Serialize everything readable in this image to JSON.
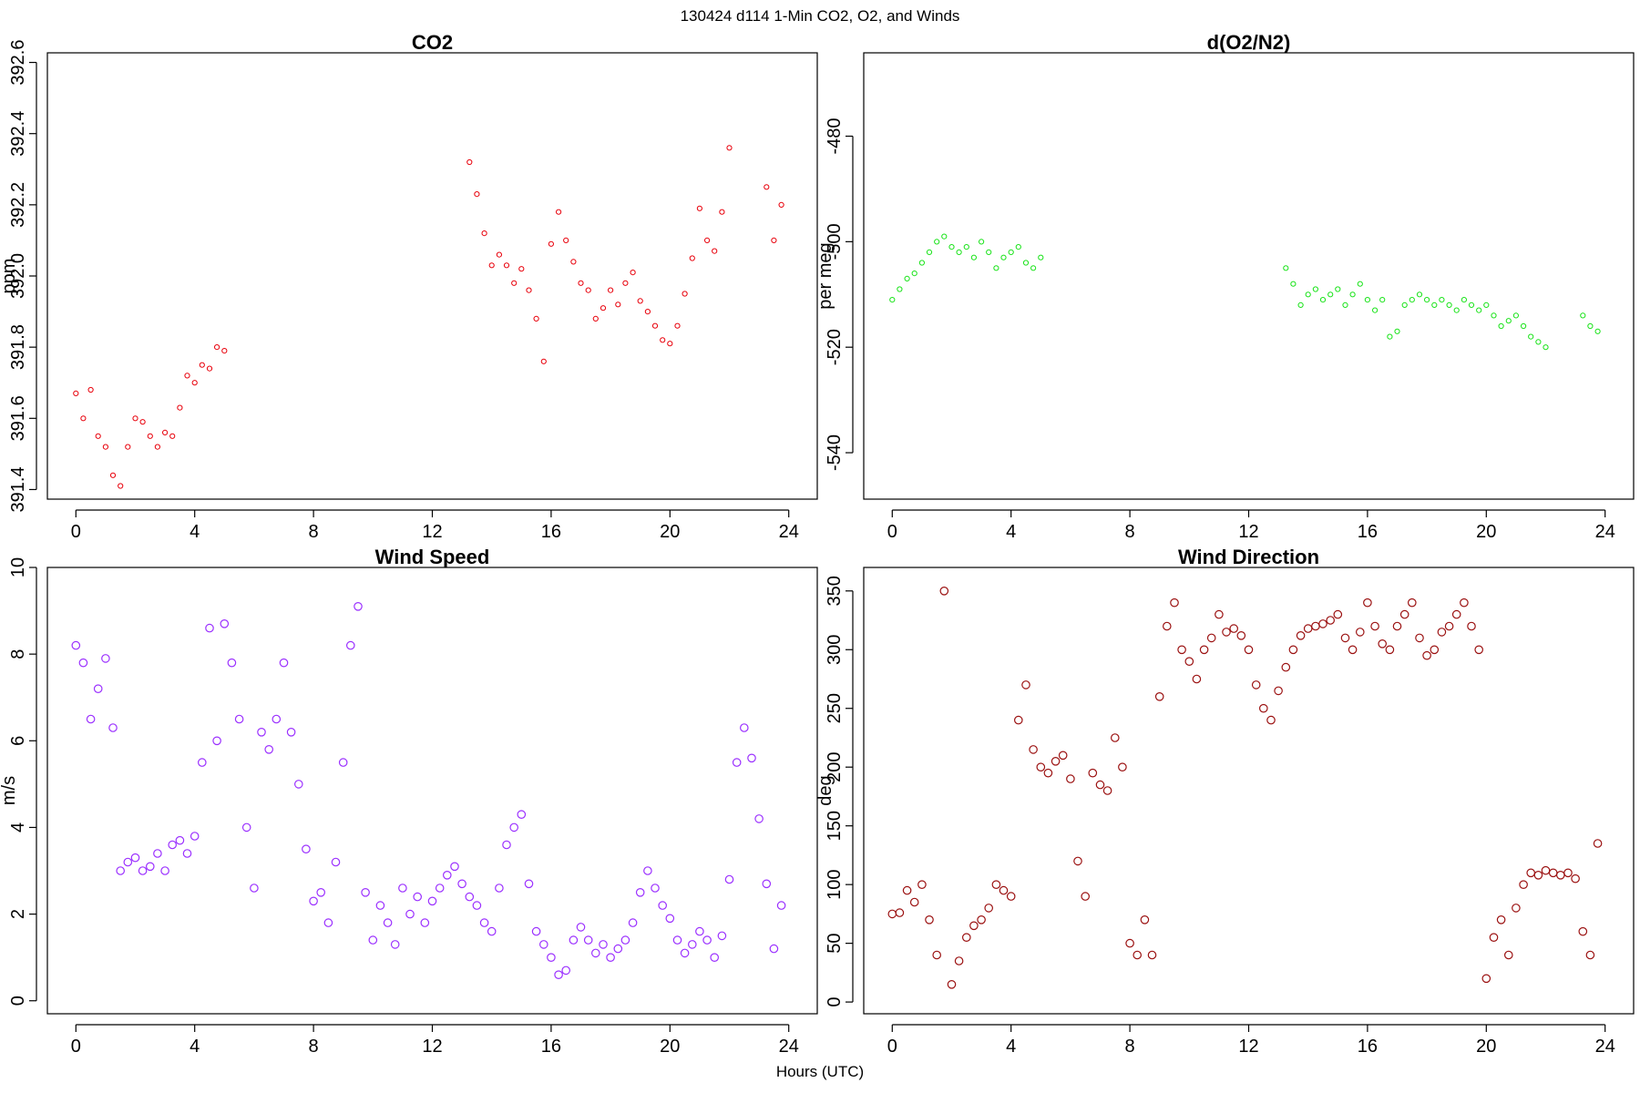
{
  "figure": {
    "suptitle": "130424   d114   1-Min CO2, O2, and Winds",
    "xlabel": "Hours (UTC)"
  },
  "chart_data": [
    {
      "type": "scatter",
      "title": "CO2",
      "xlabel": "",
      "ylabel": "ppm",
      "xlim": [
        -0.96,
        24.96
      ],
      "ylim": [
        391.373,
        392.627
      ],
      "xticks": [
        0,
        4,
        8,
        12,
        16,
        20,
        24
      ],
      "xtick_labels": [
        "0",
        "4",
        "8",
        "12",
        "16",
        "20",
        "24"
      ],
      "yticks": [
        391.4,
        391.6,
        391.8,
        392.0,
        392.2,
        392.4,
        392.6
      ],
      "ytick_labels": [
        "391.4",
        "391.6",
        "391.8",
        "392.0",
        "392.2",
        "392.4",
        "392.6"
      ],
      "ytick_vertical": true,
      "color": "#e8000b",
      "series": [
        {
          "x": [
            0,
            0.25,
            0.5,
            0.75,
            1.0,
            1.25,
            1.5,
            1.75,
            2.0,
            2.25,
            2.5,
            2.75,
            3.0,
            3.25,
            3.5,
            3.75,
            4.0,
            4.25,
            4.5,
            4.75,
            5.0,
            13.25,
            13.5,
            13.75,
            14.0,
            14.25,
            14.5,
            14.75,
            15.0,
            15.25,
            15.5,
            15.75,
            16.0,
            16.25,
            16.5,
            16.75,
            17.0,
            17.25,
            17.5,
            17.75,
            18.0,
            18.25,
            18.5,
            18.75,
            19.0,
            19.25,
            19.5,
            19.75,
            20.0,
            20.25,
            20.5,
            20.75,
            21.0,
            21.25,
            21.5,
            21.75,
            22.0,
            23.25,
            23.5,
            23.75
          ],
          "y": [
            391.67,
            391.6,
            391.68,
            391.55,
            391.52,
            391.44,
            391.41,
            391.52,
            391.6,
            391.59,
            391.55,
            391.52,
            391.56,
            391.55,
            391.63,
            391.72,
            391.7,
            391.75,
            391.74,
            391.8,
            391.79,
            392.32,
            392.23,
            392.12,
            392.03,
            392.06,
            392.03,
            391.98,
            392.02,
            391.96,
            391.88,
            391.76,
            392.09,
            392.18,
            392.1,
            392.04,
            391.98,
            391.96,
            391.88,
            391.91,
            391.96,
            391.92,
            391.98,
            392.01,
            391.93,
            391.9,
            391.86,
            391.82,
            391.81,
            391.86,
            391.95,
            392.05,
            392.19,
            392.1,
            392.07,
            392.18,
            392.36,
            392.25,
            392.1,
            392.2
          ]
        }
      ]
    },
    {
      "type": "scatter",
      "title": "d(O2/N2)",
      "xlabel": "",
      "ylabel": "per meg",
      "xlim": [
        -0.96,
        24.96
      ],
      "ylim": [
        -548.8,
        -464.2
      ],
      "xticks": [
        0,
        4,
        8,
        12,
        16,
        20,
        24
      ],
      "xtick_labels": [
        "0",
        "4",
        "8",
        "12",
        "16",
        "20",
        "24"
      ],
      "yticks": [
        -540,
        -520,
        -500,
        -480
      ],
      "ytick_labels": [
        "-540",
        "-520",
        "-500",
        "-480"
      ],
      "ytick_vertical": true,
      "color": "#19e319",
      "series": [
        {
          "x": [
            0,
            0.25,
            0.5,
            0.75,
            1.0,
            1.25,
            1.5,
            1.75,
            2.0,
            2.25,
            2.5,
            2.75,
            3.0,
            3.25,
            3.5,
            3.75,
            4.0,
            4.25,
            4.5,
            4.75,
            5.0,
            13.25,
            13.5,
            13.75,
            14.0,
            14.25,
            14.5,
            14.75,
            15.0,
            15.25,
            15.5,
            15.75,
            16.0,
            16.25,
            16.5,
            16.75,
            17.0,
            17.25,
            17.5,
            17.75,
            18.0,
            18.25,
            18.5,
            18.75,
            19.0,
            19.25,
            19.5,
            19.75,
            20.0,
            20.25,
            20.5,
            20.75,
            21.0,
            21.25,
            21.5,
            21.75,
            22.0,
            23.25,
            23.5,
            23.75
          ],
          "y": [
            -511,
            -509,
            -507,
            -506,
            -504,
            -502,
            -500,
            -499,
            -501,
            -502,
            -501,
            -503,
            -500,
            -502,
            -505,
            -503,
            -502,
            -501,
            -504,
            -505,
            -503,
            -505,
            -508,
            -512,
            -510,
            -509,
            -511,
            -510,
            -509,
            -512,
            -510,
            -508,
            -511,
            -513,
            -511,
            -518,
            -517,
            -512,
            -511,
            -510,
            -511,
            -512,
            -511,
            -512,
            -513,
            -511,
            -512,
            -513,
            -512,
            -514,
            -516,
            -515,
            -514,
            -516,
            -518,
            -519,
            -520,
            -514,
            -516,
            -517
          ]
        }
      ]
    },
    {
      "type": "scatter",
      "title": "Wind Speed",
      "xlabel": "",
      "ylabel": "m/s",
      "xlim": [
        -0.96,
        24.96
      ],
      "ylim": [
        -0.3,
        10.0
      ],
      "xticks": [
        0,
        4,
        8,
        12,
        16,
        20,
        24
      ],
      "xtick_labels": [
        "0",
        "4",
        "8",
        "12",
        "16",
        "20",
        "24"
      ],
      "yticks": [
        0,
        2,
        4,
        6,
        8,
        10
      ],
      "ytick_labels": [
        "0",
        "2",
        "4",
        "6",
        "8",
        "10"
      ],
      "ytick_vertical": true,
      "color": "#9b30ff",
      "series": [
        {
          "x": [
            0,
            0.25,
            0.5,
            0.75,
            1.0,
            1.25,
            1.5,
            1.75,
            2.0,
            2.25,
            2.5,
            2.75,
            3.0,
            3.25,
            3.5,
            3.75,
            4.0,
            4.25,
            4.5,
            4.75,
            5.0,
            5.25,
            5.5,
            5.75,
            6.0,
            6.25,
            6.5,
            6.75,
            7.0,
            7.25,
            7.5,
            7.75,
            8.0,
            8.25,
            8.5,
            8.75,
            9.0,
            9.25,
            9.5,
            9.75,
            10.0,
            10.25,
            10.5,
            10.75,
            11.0,
            11.25,
            11.5,
            11.75,
            12.0,
            12.25,
            12.5,
            12.75,
            13.0,
            13.25,
            13.5,
            13.75,
            14.0,
            14.25,
            14.5,
            14.75,
            15.0,
            15.25,
            15.5,
            15.75,
            16.0,
            16.25,
            16.5,
            16.75,
            17.0,
            17.25,
            17.5,
            17.75,
            18.0,
            18.25,
            18.5,
            18.75,
            19.0,
            19.25,
            19.5,
            19.75,
            20.0,
            20.25,
            20.5,
            20.75,
            21.0,
            21.25,
            21.5,
            21.75,
            22.0,
            22.25,
            22.5,
            22.75,
            23.0,
            23.25,
            23.5,
            23.75
          ],
          "y": [
            8.2,
            7.8,
            6.5,
            7.2,
            7.9,
            6.3,
            3.0,
            3.2,
            3.3,
            3.0,
            3.1,
            3.4,
            3.0,
            3.6,
            3.7,
            3.4,
            3.8,
            5.5,
            8.6,
            6.0,
            8.7,
            7.8,
            6.5,
            4.0,
            2.6,
            6.2,
            5.8,
            6.5,
            7.8,
            6.2,
            5.0,
            3.5,
            2.3,
            2.5,
            1.8,
            3.2,
            5.5,
            8.2,
            9.1,
            2.5,
            1.4,
            2.2,
            1.8,
            1.3,
            2.6,
            2.0,
            2.4,
            1.8,
            2.3,
            2.6,
            2.9,
            3.1,
            2.7,
            2.4,
            2.2,
            1.8,
            1.6,
            2.6,
            3.6,
            4.0,
            4.3,
            2.7,
            1.6,
            1.3,
            1.0,
            0.6,
            0.7,
            1.4,
            1.7,
            1.4,
            1.1,
            1.3,
            1.0,
            1.2,
            1.4,
            1.8,
            2.5,
            3.0,
            2.6,
            2.2,
            1.9,
            1.4,
            1.1,
            1.3,
            1.6,
            1.4,
            1.0,
            1.5,
            2.8,
            5.5,
            6.3,
            5.6,
            4.2,
            2.7,
            1.2,
            2.2
          ]
        }
      ]
    },
    {
      "type": "scatter",
      "title": "Wind Direction",
      "xlabel": "",
      "ylabel": "deg",
      "xlim": [
        -0.96,
        24.96
      ],
      "ylim": [
        -10,
        370
      ],
      "xticks": [
        0,
        4,
        8,
        12,
        16,
        20,
        24
      ],
      "xtick_labels": [
        "0",
        "4",
        "8",
        "12",
        "16",
        "20",
        "24"
      ],
      "yticks": [
        0,
        50,
        100,
        150,
        200,
        250,
        300,
        350
      ],
      "ytick_labels": [
        "0",
        "50",
        "100",
        "150",
        "200",
        "250",
        "300",
        "350"
      ],
      "ytick_vertical": true,
      "color": "#9b1111",
      "series": [
        {
          "x": [
            0,
            0.25,
            0.5,
            0.75,
            1.0,
            1.25,
            1.5,
            1.75,
            2.0,
            2.25,
            2.5,
            2.75,
            3.0,
            3.25,
            3.5,
            3.75,
            4.0,
            4.25,
            4.5,
            4.75,
            5.0,
            5.25,
            5.5,
            5.75,
            6.0,
            6.25,
            6.5,
            6.75,
            7.0,
            7.25,
            7.5,
            7.75,
            8.0,
            8.25,
            8.5,
            8.75,
            9.0,
            9.25,
            9.5,
            9.75,
            10.0,
            10.25,
            10.5,
            10.75,
            11.0,
            11.25,
            11.5,
            11.75,
            12.0,
            12.25,
            12.5,
            12.75,
            13.0,
            13.25,
            13.5,
            13.75,
            14.0,
            14.25,
            14.5,
            14.75,
            15.0,
            15.25,
            15.5,
            15.75,
            16.0,
            16.25,
            16.5,
            16.75,
            17.0,
            17.25,
            17.5,
            17.75,
            18.0,
            18.25,
            18.5,
            18.75,
            19.0,
            19.25,
            19.5,
            19.75,
            20.0,
            20.25,
            20.5,
            20.75,
            21.0,
            21.25,
            21.5,
            21.75,
            22.0,
            22.25,
            22.5,
            22.75,
            23.0,
            23.25,
            23.5,
            23.75
          ],
          "y": [
            75,
            76,
            95,
            85,
            100,
            70,
            40,
            350,
            15,
            35,
            55,
            65,
            70,
            80,
            100,
            95,
            90,
            240,
            270,
            215,
            200,
            195,
            205,
            210,
            190,
            120,
            90,
            195,
            185,
            180,
            225,
            200,
            50,
            40,
            70,
            40,
            260,
            320,
            340,
            300,
            290,
            275,
            300,
            310,
            330,
            315,
            318,
            312,
            300,
            270,
            250,
            240,
            265,
            285,
            300,
            312,
            318,
            320,
            322,
            325,
            330,
            310,
            300,
            315,
            340,
            320,
            305,
            300,
            320,
            330,
            340,
            310,
            295,
            300,
            315,
            320,
            330,
            340,
            320,
            300,
            20,
            55,
            70,
            40,
            80,
            100,
            110,
            108,
            112,
            110,
            108,
            110,
            105,
            60,
            40,
            135
          ]
        }
      ]
    }
  ]
}
